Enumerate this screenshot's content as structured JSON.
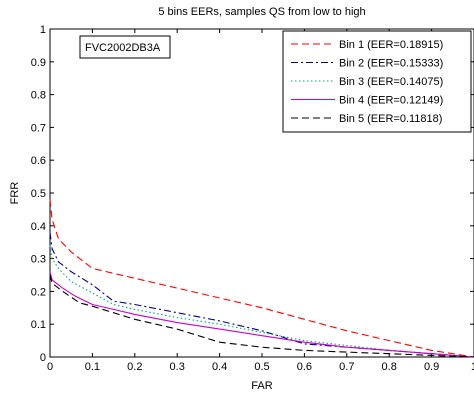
{
  "chart_data": {
    "type": "line",
    "title": "5 bins EERs, samples QS from low to high",
    "xlabel": "FAR",
    "ylabel": "FRR",
    "xlim": [
      0,
      1
    ],
    "ylim": [
      0,
      1
    ],
    "x_ticks": [
      "0",
      "0.1",
      "0.2",
      "0.3",
      "0.4",
      "0.5",
      "0.6",
      "0.7",
      "0.8",
      "0.9",
      "1"
    ],
    "y_ticks": [
      "0",
      "0.1",
      "0.2",
      "0.3",
      "0.4",
      "0.5",
      "0.6",
      "0.7",
      "0.8",
      "0.9",
      "1"
    ],
    "grid": false,
    "legend_position": "top-right",
    "annotation": "FVC2002DB3A",
    "series": [
      {
        "name": "Bin 1 (EER=0.18915)",
        "color": "#ff0000",
        "dash": "dashed",
        "points": [
          [
            0,
            0.48
          ],
          [
            0.005,
            0.42
          ],
          [
            0.02,
            0.36
          ],
          [
            0.05,
            0.32
          ],
          [
            0.1,
            0.27
          ],
          [
            0.2,
            0.24
          ],
          [
            0.3,
            0.21
          ],
          [
            0.4,
            0.18
          ],
          [
            0.5,
            0.15
          ],
          [
            0.6,
            0.115
          ],
          [
            0.7,
            0.08
          ],
          [
            0.8,
            0.05
          ],
          [
            0.9,
            0.02
          ],
          [
            1.0,
            0.0
          ]
        ]
      },
      {
        "name": "Bin 2 (EER=0.15333)",
        "color": "#00008b",
        "dash": "dashdot",
        "points": [
          [
            0,
            0.38
          ],
          [
            0.005,
            0.33
          ],
          [
            0.02,
            0.29
          ],
          [
            0.05,
            0.26
          ],
          [
            0.1,
            0.22
          ],
          [
            0.15,
            0.17
          ],
          [
            0.2,
            0.16
          ],
          [
            0.3,
            0.135
          ],
          [
            0.4,
            0.11
          ],
          [
            0.5,
            0.08
          ],
          [
            0.6,
            0.04
          ],
          [
            0.7,
            0.03
          ],
          [
            0.8,
            0.02
          ],
          [
            0.9,
            0.01
          ],
          [
            1.0,
            0.0
          ]
        ]
      },
      {
        "name": "Bin 3 (EER=0.14075)",
        "color": "#00aa77",
        "dash": "dotted",
        "points": [
          [
            0,
            0.34
          ],
          [
            0.005,
            0.3
          ],
          [
            0.02,
            0.27
          ],
          [
            0.05,
            0.23
          ],
          [
            0.1,
            0.195
          ],
          [
            0.15,
            0.16
          ],
          [
            0.2,
            0.145
          ],
          [
            0.3,
            0.12
          ],
          [
            0.4,
            0.1
          ],
          [
            0.5,
            0.075
          ],
          [
            0.6,
            0.05
          ],
          [
            0.7,
            0.035
          ],
          [
            0.8,
            0.02
          ],
          [
            0.9,
            0.01
          ],
          [
            1.0,
            0.0
          ]
        ]
      },
      {
        "name": "Bin 4 (EER=0.12149)",
        "color": "#cc00cc",
        "dash": "solid",
        "points": [
          [
            0,
            0.26
          ],
          [
            0.005,
            0.235
          ],
          [
            0.03,
            0.21
          ],
          [
            0.06,
            0.185
          ],
          [
            0.1,
            0.16
          ],
          [
            0.15,
            0.145
          ],
          [
            0.2,
            0.13
          ],
          [
            0.3,
            0.105
          ],
          [
            0.4,
            0.085
          ],
          [
            0.5,
            0.065
          ],
          [
            0.6,
            0.045
          ],
          [
            0.7,
            0.03
          ],
          [
            0.8,
            0.02
          ],
          [
            0.9,
            0.01
          ],
          [
            1.0,
            0.0
          ]
        ]
      },
      {
        "name": "Bin 5 (EER=0.11818)",
        "color": "#000000",
        "dash": "dashed",
        "points": [
          [
            0,
            0.25
          ],
          [
            0.005,
            0.225
          ],
          [
            0.03,
            0.2
          ],
          [
            0.07,
            0.165
          ],
          [
            0.1,
            0.155
          ],
          [
            0.2,
            0.115
          ],
          [
            0.3,
            0.085
          ],
          [
            0.4,
            0.045
          ],
          [
            0.5,
            0.03
          ],
          [
            0.6,
            0.02
          ],
          [
            0.7,
            0.015
          ],
          [
            0.8,
            0.01
          ],
          [
            0.9,
            0.005
          ],
          [
            1.0,
            0.0
          ]
        ]
      }
    ]
  }
}
